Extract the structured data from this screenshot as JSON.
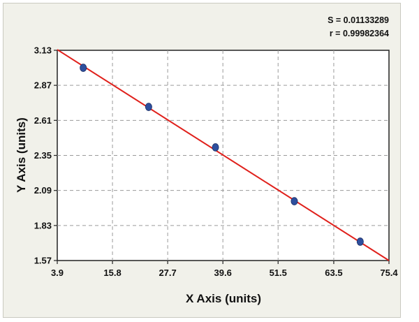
{
  "chart_data": {
    "type": "scatter",
    "xlabel": "X Axis (units)",
    "ylabel": "Y Axis (units)",
    "xlim": [
      3.9,
      75.4
    ],
    "ylim": [
      1.57,
      3.13
    ],
    "x_ticks": [
      "3.9",
      "15.8",
      "27.7",
      "39.6",
      "51.5",
      "63.5",
      "75.4"
    ],
    "y_ticks": [
      "3.13",
      "2.87",
      "2.61",
      "2.35",
      "2.09",
      "1.83",
      "1.57"
    ],
    "grid": true,
    "annotations": [
      "S = 0.01133289",
      "r = 0.99982364"
    ],
    "series": [
      {
        "points": [
          {
            "x": 9.5,
            "y": 3.0
          },
          {
            "x": 23.6,
            "y": 2.71
          },
          {
            "x": 38.0,
            "y": 2.41
          },
          {
            "x": 55.0,
            "y": 2.01
          },
          {
            "x": 69.2,
            "y": 1.71
          }
        ]
      }
    ],
    "fit_line": {
      "x": [
        3.9,
        75.4
      ],
      "y": [
        3.135,
        1.57
      ]
    },
    "colors": {
      "points": "#2e4f9e",
      "line": "#e0201b",
      "grid": "#9a9a9a",
      "background": "#ffffff"
    }
  }
}
